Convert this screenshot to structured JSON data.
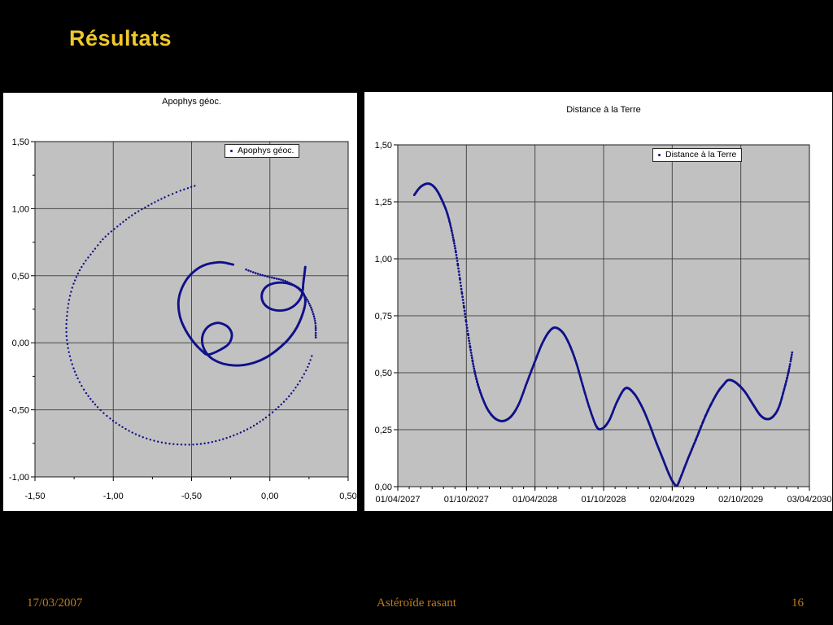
{
  "slide": {
    "title": "Résultats",
    "footer": {
      "date": "17/03/2007",
      "center": "Astéroïde rasant",
      "page": "16"
    }
  },
  "colors": {
    "title": "#f0c929",
    "footer": "#bd7b1c",
    "series": "#10108a",
    "plot_bg": "#c1c1c1",
    "grid": "#4a4a4a",
    "plot_border": "#1a1a1a",
    "tick": "#000000"
  },
  "chart_data": [
    {
      "id": "geo",
      "type": "scatter",
      "title": "Apophys géoc.",
      "legend": "Apophys géoc.",
      "xlim": [
        -1.5,
        0.5
      ],
      "ylim": [
        -1.0,
        1.5
      ],
      "xticks": {
        "values": [
          -1.5,
          -1.0,
          -0.5,
          0.0,
          0.5
        ],
        "labels": [
          "-1,50",
          "-1,00",
          "-0,50",
          "0,00",
          "0,50"
        ]
      },
      "yticks": {
        "values": [
          1.5,
          1.0,
          0.5,
          0.0,
          -0.5,
          -1.0
        ],
        "labels": [
          "1,50",
          "1,00",
          "0,50",
          "0,00",
          "-0,50",
          "-1,00"
        ]
      },
      "x_minor": 0.25,
      "y_minor": 0.25,
      "grid": "major-both",
      "legend_position": "inner-top-right",
      "series": [
        {
          "name": "Apophys géoc.",
          "note": "geocentric trajectory of Apophis in AU, Apr 2027 - Apr 2030; dotted where motion is fast",
          "segments": [
            {
              "style": "sparse-dots",
              "spacing": 4.4,
              "radius": 1.2,
              "points": [
                [
                  -0.48,
                  1.17
                ],
                [
                  -0.58,
                  1.13
                ],
                [
                  -0.68,
                  1.08
                ],
                [
                  -0.78,
                  1.02
                ],
                [
                  -0.88,
                  0.95
                ],
                [
                  -0.97,
                  0.87
                ],
                [
                  -1.06,
                  0.78
                ],
                [
                  -1.13,
                  0.68
                ],
                [
                  -1.2,
                  0.57
                ],
                [
                  -1.25,
                  0.45
                ],
                [
                  -1.28,
                  0.33
                ],
                [
                  -1.295,
                  0.21
                ],
                [
                  -1.3,
                  0.09
                ],
                [
                  -1.29,
                  -0.03
                ],
                [
                  -1.265,
                  -0.15
                ],
                [
                  -1.225,
                  -0.27
                ],
                [
                  -1.17,
                  -0.38
                ],
                [
                  -1.1,
                  -0.48
                ],
                [
                  -1.02,
                  -0.565
                ],
                [
                  -0.925,
                  -0.64
                ],
                [
                  -0.82,
                  -0.7
                ],
                [
                  -0.705,
                  -0.74
                ],
                [
                  -0.585,
                  -0.758
                ],
                [
                  -0.465,
                  -0.757
                ],
                [
                  -0.35,
                  -0.735
                ],
                [
                  -0.24,
                  -0.695
                ],
                [
                  -0.135,
                  -0.64
                ],
                [
                  -0.04,
                  -0.57
                ],
                [
                  0.045,
                  -0.49
                ],
                [
                  0.125,
                  -0.395
                ],
                [
                  0.19,
                  -0.29
                ],
                [
                  0.24,
                  -0.185
                ],
                [
                  0.275,
                  -0.075
                ]
              ]
            },
            {
              "style": "medium-dots",
              "spacing": 2.6,
              "radius": 1.3,
              "points": [
                [
                  0.293,
                  0.04
                ],
                [
                  0.29,
                  0.15
                ],
                [
                  0.267,
                  0.25
                ],
                [
                  0.228,
                  0.34
                ],
                [
                  0.17,
                  0.415
                ],
                [
                  0.095,
                  0.462
                ],
                [
                  0.01,
                  0.487
                ],
                [
                  -0.08,
                  0.515
                ],
                [
                  -0.16,
                  0.55
                ]
              ]
            },
            {
              "style": "dense-dots",
              "spacing": 1.3,
              "radius": 1.5,
              "points": [
                [
                  -0.235,
                  0.583
                ],
                [
                  -0.32,
                  0.6
                ],
                [
                  -0.42,
                  0.578
                ],
                [
                  -0.5,
                  0.515
                ],
                [
                  -0.555,
                  0.425
                ],
                [
                  -0.583,
                  0.315
                ],
                [
                  -0.575,
                  0.2
                ],
                [
                  -0.54,
                  0.098
                ],
                [
                  -0.487,
                  0.005
                ],
                [
                  -0.432,
                  -0.062
                ],
                [
                  -0.396,
                  -0.088
                ],
                [
                  -0.33,
                  -0.06
                ],
                [
                  -0.263,
                  -0.008
                ],
                [
                  -0.243,
                  0.062
                ],
                [
                  -0.27,
                  0.12
                ],
                [
                  -0.33,
                  0.148
                ],
                [
                  -0.39,
                  0.124
                ],
                [
                  -0.427,
                  0.063
                ],
                [
                  -0.43,
                  -0.012
                ],
                [
                  -0.398,
                  -0.088
                ],
                [
                  -0.344,
                  -0.135
                ],
                [
                  -0.272,
                  -0.163
                ],
                [
                  -0.185,
                  -0.168
                ],
                [
                  -0.095,
                  -0.146
                ],
                [
                  -0.015,
                  -0.103
                ],
                [
                  0.053,
                  -0.046
                ],
                [
                  0.115,
                  0.022
                ],
                [
                  0.166,
                  0.103
                ],
                [
                  0.202,
                  0.192
                ],
                [
                  0.225,
                  0.287
                ],
                [
                  0.22,
                  0.352
                ],
                [
                  0.184,
                  0.406
                ],
                [
                  0.124,
                  0.44
                ],
                [
                  0.05,
                  0.448
                ],
                [
                  -0.016,
                  0.424
                ],
                [
                  -0.05,
                  0.368
                ],
                [
                  -0.044,
                  0.304
                ],
                [
                  -0.003,
                  0.257
                ],
                [
                  0.062,
                  0.24
                ],
                [
                  0.127,
                  0.256
                ],
                [
                  0.177,
                  0.301
                ],
                [
                  0.205,
                  0.36
                ],
                [
                  0.214,
                  0.45
                ],
                [
                  0.221,
                  0.515
                ],
                [
                  0.226,
                  0.565
                ]
              ]
            }
          ]
        }
      ]
    },
    {
      "id": "dist",
      "type": "line",
      "title": "Distance à la Terre",
      "legend": "Distance à la Terre",
      "xlim": [
        0,
        6
      ],
      "ylim": [
        0.0,
        1.5
      ],
      "xticks": {
        "values": [
          0,
          1,
          2,
          3,
          4,
          5,
          6
        ],
        "labels": [
          "01/04/2027",
          "01/10/2027",
          "01/04/2028",
          "01/10/2028",
          "02/04/2029",
          "02/10/2029",
          "03/04/2030"
        ]
      },
      "yticks": {
        "values": [
          1.5,
          1.25,
          1.0,
          0.75,
          0.5,
          0.25,
          0.0
        ],
        "labels": [
          "1,50",
          "1,25",
          "1,00",
          "0,75",
          "0,50",
          "0,25",
          "0,00"
        ]
      },
      "x_minor": 0.1667,
      "y_minor": null,
      "grid": "major-both",
      "legend_position": "inner-top-right",
      "series": [
        {
          "name": "Distance à la Terre",
          "note": "distance Earth-Apophis in AU vs date; x unit = 6-month tick intervals from 01/04/2027",
          "time_step": 0.006,
          "radius": 1.4,
          "points": [
            [
              0.24,
              1.28
            ],
            [
              0.33,
              1.315
            ],
            [
              0.44,
              1.33
            ],
            [
              0.54,
              1.312
            ],
            [
              0.64,
              1.26
            ],
            [
              0.74,
              1.18
            ],
            [
              0.84,
              1.04
            ],
            [
              0.94,
              0.84
            ],
            [
              1.04,
              0.64
            ],
            [
              1.14,
              0.48
            ],
            [
              1.26,
              0.37
            ],
            [
              1.38,
              0.31
            ],
            [
              1.51,
              0.288
            ],
            [
              1.64,
              0.305
            ],
            [
              1.76,
              0.36
            ],
            [
              1.88,
              0.455
            ],
            [
              2.0,
              0.55
            ],
            [
              2.1,
              0.625
            ],
            [
              2.2,
              0.678
            ],
            [
              2.29,
              0.698
            ],
            [
              2.4,
              0.678
            ],
            [
              2.5,
              0.625
            ],
            [
              2.6,
              0.545
            ],
            [
              2.7,
              0.44
            ],
            [
              2.8,
              0.34
            ],
            [
              2.9,
              0.262
            ],
            [
              2.98,
              0.255
            ],
            [
              3.08,
              0.29
            ],
            [
              3.2,
              0.375
            ],
            [
              3.32,
              0.432
            ],
            [
              3.44,
              0.41
            ],
            [
              3.56,
              0.35
            ],
            [
              3.66,
              0.28
            ],
            [
              3.76,
              0.2
            ],
            [
              3.86,
              0.125
            ],
            [
              3.96,
              0.05
            ],
            [
              4.03,
              0.012
            ],
            [
              4.07,
              0.004
            ],
            [
              4.13,
              0.045
            ],
            [
              4.22,
              0.115
            ],
            [
              4.35,
              0.21
            ],
            [
              4.5,
              0.32
            ],
            [
              4.65,
              0.408
            ],
            [
              4.75,
              0.448
            ],
            [
              4.82,
              0.468
            ],
            [
              4.92,
              0.458
            ],
            [
              5.05,
              0.42
            ],
            [
              5.18,
              0.36
            ],
            [
              5.28,
              0.315
            ],
            [
              5.37,
              0.297
            ],
            [
              5.46,
              0.305
            ],
            [
              5.55,
              0.345
            ],
            [
              5.63,
              0.425
            ],
            [
              5.7,
              0.51
            ],
            [
              5.75,
              0.592
            ]
          ]
        }
      ]
    }
  ]
}
